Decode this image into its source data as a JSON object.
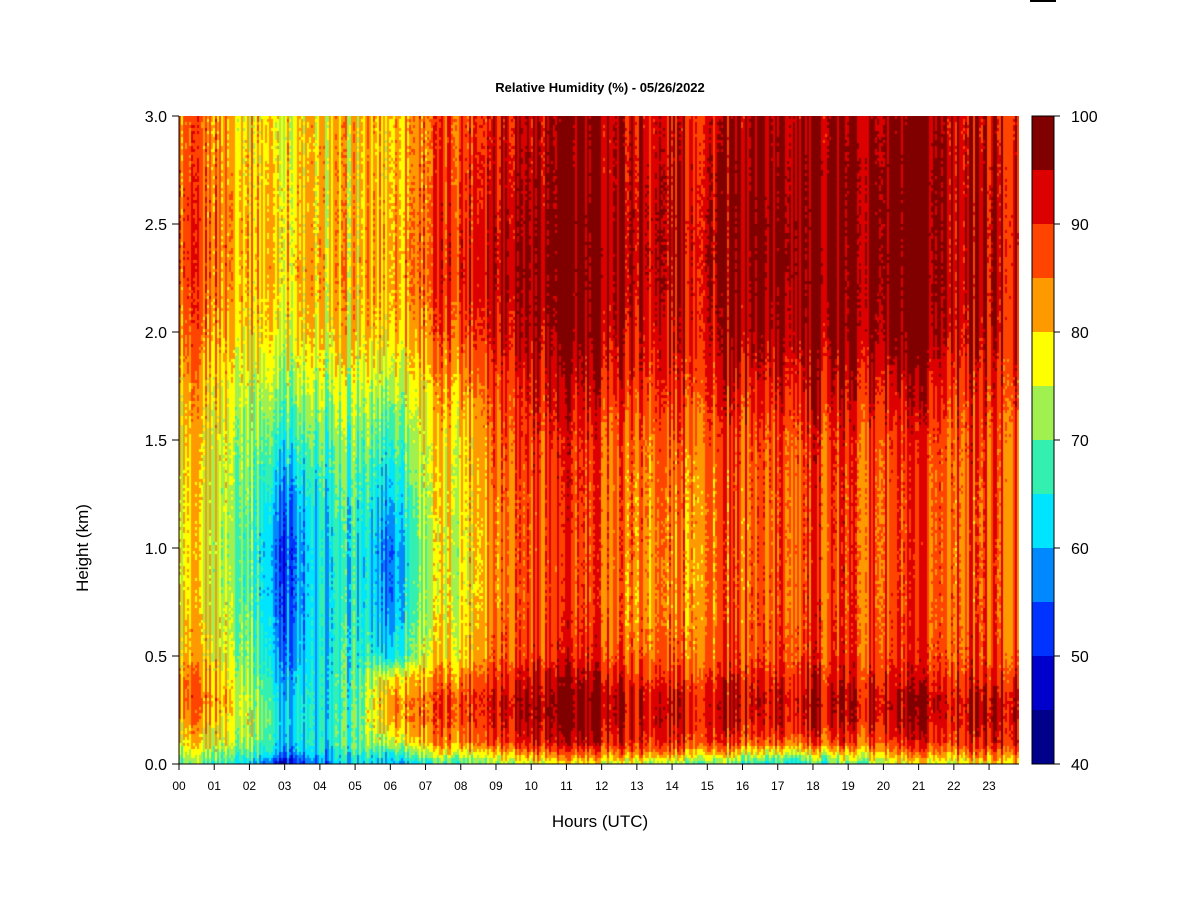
{
  "chart_data": {
    "type": "heatmap",
    "title": "Relative Humidity (%) - 05/26/2022",
    "xlabel": "Hours (UTC)",
    "ylabel": "Height (km)",
    "xlim": [
      0,
      23.85
    ],
    "ylim": [
      0.0,
      3.0
    ],
    "x_ticks": [
      0,
      1,
      2,
      3,
      4,
      5,
      6,
      7,
      8,
      9,
      10,
      11,
      12,
      13,
      14,
      15,
      16,
      17,
      18,
      19,
      20,
      21,
      22,
      23
    ],
    "x_tick_labels": [
      "00",
      "01",
      "02",
      "03",
      "04",
      "05",
      "06",
      "07",
      "08",
      "09",
      "10",
      "11",
      "12",
      "13",
      "14",
      "15",
      "16",
      "17",
      "18",
      "19",
      "20",
      "21",
      "22",
      "23"
    ],
    "y_ticks": [
      0.0,
      0.5,
      1.0,
      1.5,
      2.0,
      2.5,
      3.0
    ],
    "y_tick_labels": [
      "0.0",
      "0.5",
      "1.0",
      "1.5",
      "2.0",
      "2.5",
      "3.0"
    ],
    "colorbar": {
      "levels": [
        40,
        45,
        50,
        55,
        60,
        65,
        70,
        75,
        80,
        85,
        90,
        95,
        100
      ],
      "tick_values": [
        40,
        50,
        60,
        70,
        80,
        90,
        100
      ],
      "tick_labels": [
        "40",
        "50",
        "60",
        "70",
        "80",
        "90",
        "100"
      ],
      "colors": [
        "#00008B",
        "#0000CD",
        "#0033FF",
        "#0088FF",
        "#00E5FF",
        "#33F0B0",
        "#A0F050",
        "#FFFF00",
        "#FF9900",
        "#FF4400",
        "#DD0000",
        "#800000"
      ]
    },
    "x_hours": [
      0,
      1,
      2,
      3,
      4,
      5,
      6,
      7,
      8,
      9,
      10,
      11,
      12,
      13,
      14,
      15,
      16,
      17,
      18,
      19,
      20,
      21,
      22,
      23,
      23.85
    ],
    "y_heights_km": [
      0.0,
      0.05,
      0.1,
      0.2,
      0.3,
      0.4,
      0.5,
      0.75,
      1.0,
      1.25,
      1.5,
      1.75,
      2.0,
      2.25,
      2.5,
      2.75,
      3.0
    ],
    "rh_values_by_hour": [
      [
        68,
        73,
        77,
        81,
        84,
        82,
        79,
        77,
        76,
        77,
        78,
        80,
        84,
        86,
        86,
        85,
        84
      ],
      [
        68,
        73,
        77,
        81,
        84,
        82,
        79,
        77,
        76,
        77,
        78,
        80,
        84,
        86,
        86,
        85,
        84
      ],
      [
        64,
        70,
        74,
        76,
        75,
        73,
        72,
        70,
        70,
        71,
        73,
        76,
        80,
        82,
        82,
        81,
        80
      ],
      [
        48,
        58,
        62,
        63,
        62,
        60,
        57,
        54,
        53,
        58,
        66,
        73,
        78,
        80,
        80,
        79,
        78
      ],
      [
        55,
        60,
        63,
        63,
        63,
        63,
        62,
        62,
        62,
        64,
        68,
        73,
        78,
        80,
        79,
        79,
        79
      ],
      [
        62,
        66,
        68,
        68,
        67,
        67,
        66,
        65,
        65,
        67,
        70,
        74,
        79,
        81,
        80,
        80,
        80
      ],
      [
        60,
        66,
        75,
        83,
        84,
        79,
        63,
        57,
        56,
        61,
        67,
        74,
        80,
        82,
        82,
        81,
        81
      ],
      [
        65,
        75,
        82,
        86,
        86,
        82,
        77,
        74,
        74,
        76,
        77,
        80,
        85,
        87,
        87,
        86,
        86
      ],
      [
        68,
        77,
        85,
        88,
        89,
        84,
        79,
        77,
        77,
        78,
        79,
        83,
        88,
        91,
        90,
        89,
        88
      ],
      [
        73,
        82,
        90,
        93,
        94,
        91,
        88,
        86,
        86,
        87,
        88,
        90,
        94,
        96,
        95,
        94,
        93
      ],
      [
        76,
        85,
        92,
        96,
        96,
        93,
        89,
        88,
        88,
        88,
        90,
        92,
        96,
        97,
        97,
        96,
        95
      ],
      [
        77,
        86,
        93,
        97,
        97,
        94,
        90,
        88,
        88,
        89,
        90,
        93,
        97,
        98,
        98,
        97,
        96
      ],
      [
        76,
        86,
        92,
        96,
        96,
        93,
        89,
        87,
        87,
        87,
        88,
        92,
        96,
        97,
        97,
        96,
        96
      ],
      [
        75,
        85,
        91,
        93,
        93,
        90,
        86,
        84,
        85,
        85,
        86,
        90,
        93,
        95,
        95,
        94,
        93
      ],
      [
        72,
        84,
        90,
        93,
        93,
        89,
        86,
        84,
        84,
        85,
        86,
        90,
        92,
        94,
        94,
        93,
        92
      ],
      [
        70,
        82,
        89,
        92,
        92,
        89,
        86,
        85,
        85,
        85,
        87,
        90,
        93,
        94,
        94,
        93,
        92
      ],
      [
        66,
        78,
        87,
        92,
        93,
        90,
        87,
        86,
        86,
        86,
        87,
        91,
        96,
        97,
        98,
        97,
        96
      ],
      [
        65,
        76,
        87,
        92,
        93,
        90,
        88,
        87,
        87,
        87,
        88,
        92,
        96,
        98,
        98,
        97,
        96
      ],
      [
        66,
        77,
        88,
        93,
        94,
        91,
        89,
        88,
        88,
        88,
        89,
        93,
        97,
        98,
        98,
        98,
        96
      ],
      [
        70,
        79,
        88,
        93,
        94,
        91,
        89,
        88,
        88,
        88,
        89,
        93,
        97,
        98,
        98,
        98,
        96
      ],
      [
        73,
        81,
        88,
        92,
        93,
        90,
        88,
        87,
        87,
        87,
        88,
        92,
        97,
        98,
        98,
        98,
        96
      ],
      [
        75,
        83,
        89,
        93,
        94,
        90,
        88,
        87,
        87,
        87,
        88,
        92,
        97,
        98,
        98,
        98,
        96
      ],
      [
        77,
        84,
        90,
        93,
        94,
        90,
        88,
        87,
        87,
        87,
        88,
        91,
        95,
        96,
        96,
        96,
        95
      ],
      [
        78,
        86,
        91,
        94,
        94,
        90,
        88,
        87,
        87,
        87,
        88,
        90,
        93,
        94,
        94,
        93,
        92
      ],
      [
        79,
        87,
        92,
        94,
        94,
        90,
        87,
        86,
        86,
        86,
        87,
        89,
        91,
        92,
        92,
        91,
        90
      ]
    ]
  }
}
